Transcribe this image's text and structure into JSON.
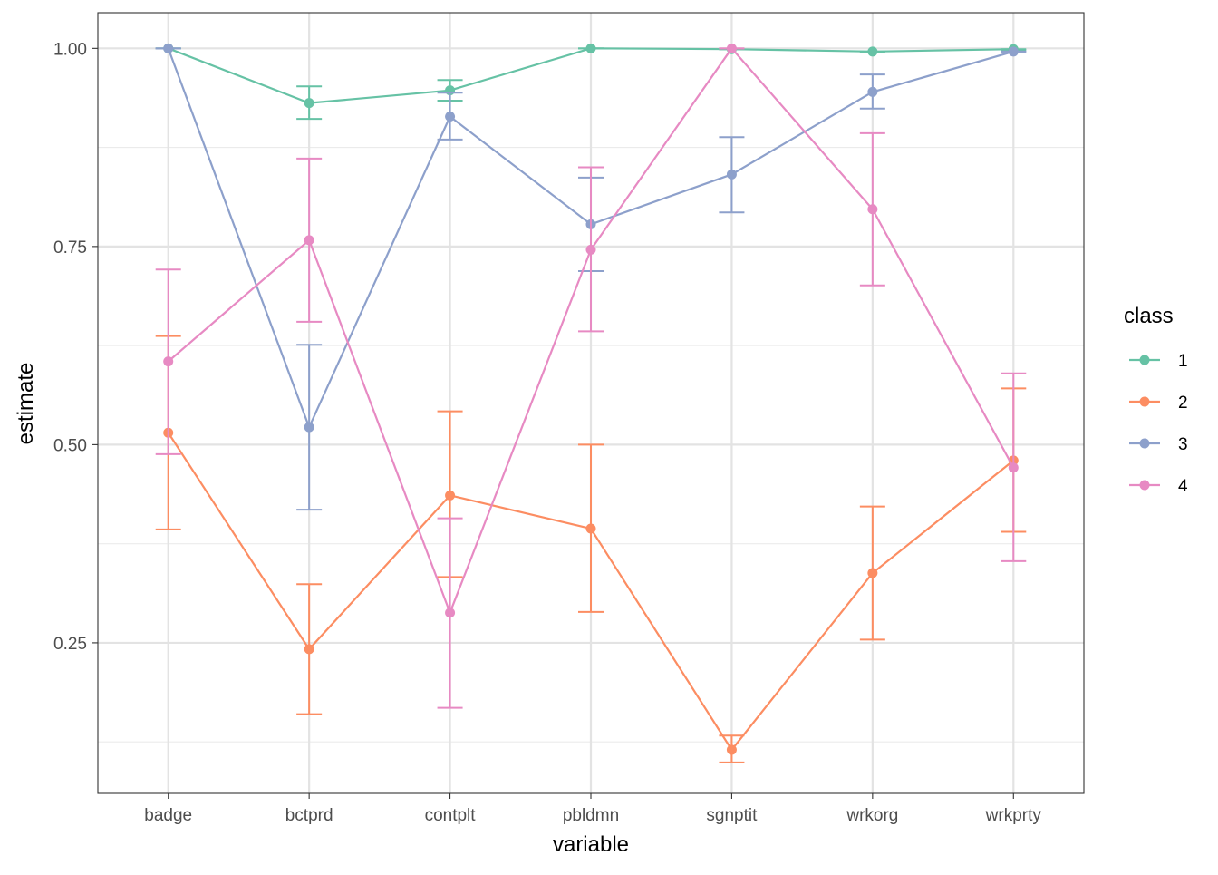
{
  "chart_data": {
    "type": "line",
    "title": "",
    "xlabel": "variable",
    "ylabel": "estimate",
    "categories": [
      "badge",
      "bctprd",
      "contplt",
      "pbldmn",
      "sgnptit",
      "wrkorg",
      "wrkprty"
    ],
    "ylim": [
      0.06,
      1.045
    ],
    "yticks": [
      0.25,
      0.5,
      0.75,
      1.0
    ],
    "ytick_labels": [
      "0.25",
      "0.50",
      "0.75",
      "1.00"
    ],
    "grid": true,
    "legend": {
      "title": "class",
      "position": "right"
    },
    "series": [
      {
        "name": "1",
        "color": "#66C2A5",
        "values": [
          1.0,
          0.931,
          0.947,
          1.0,
          0.999,
          0.996,
          0.999
        ],
        "lower": [
          1.0,
          0.911,
          0.934,
          1.0,
          0.999,
          0.996,
          0.998
        ],
        "upper": [
          1.0,
          0.952,
          0.96,
          1.0,
          0.999,
          0.996,
          0.999
        ]
      },
      {
        "name": "2",
        "color": "#FC8D62",
        "values": [
          0.515,
          0.242,
          0.436,
          0.394,
          0.115,
          0.338,
          0.48
        ],
        "lower": [
          0.393,
          0.16,
          0.333,
          0.289,
          0.099,
          0.254,
          0.39
        ],
        "upper": [
          0.637,
          0.324,
          0.542,
          0.5,
          0.133,
          0.422,
          0.571
        ]
      },
      {
        "name": "3",
        "color": "#8DA0CB",
        "values": [
          1.0,
          0.522,
          0.914,
          0.778,
          0.841,
          0.945,
          0.996
        ],
        "lower": [
          1.0,
          0.418,
          0.885,
          0.719,
          0.793,
          0.924,
          0.996
        ],
        "upper": [
          1.0,
          0.626,
          0.944,
          0.837,
          0.888,
          0.967,
          0.996
        ]
      },
      {
        "name": "4",
        "color": "#E78AC3",
        "values": [
          0.605,
          0.758,
          0.288,
          0.746,
          1.0,
          0.797,
          0.471
        ],
        "lower": [
          0.488,
          0.655,
          0.168,
          0.643,
          1.0,
          0.701,
          0.353
        ],
        "upper": [
          0.721,
          0.861,
          0.407,
          0.85,
          1.0,
          0.893,
          0.59
        ]
      }
    ]
  }
}
